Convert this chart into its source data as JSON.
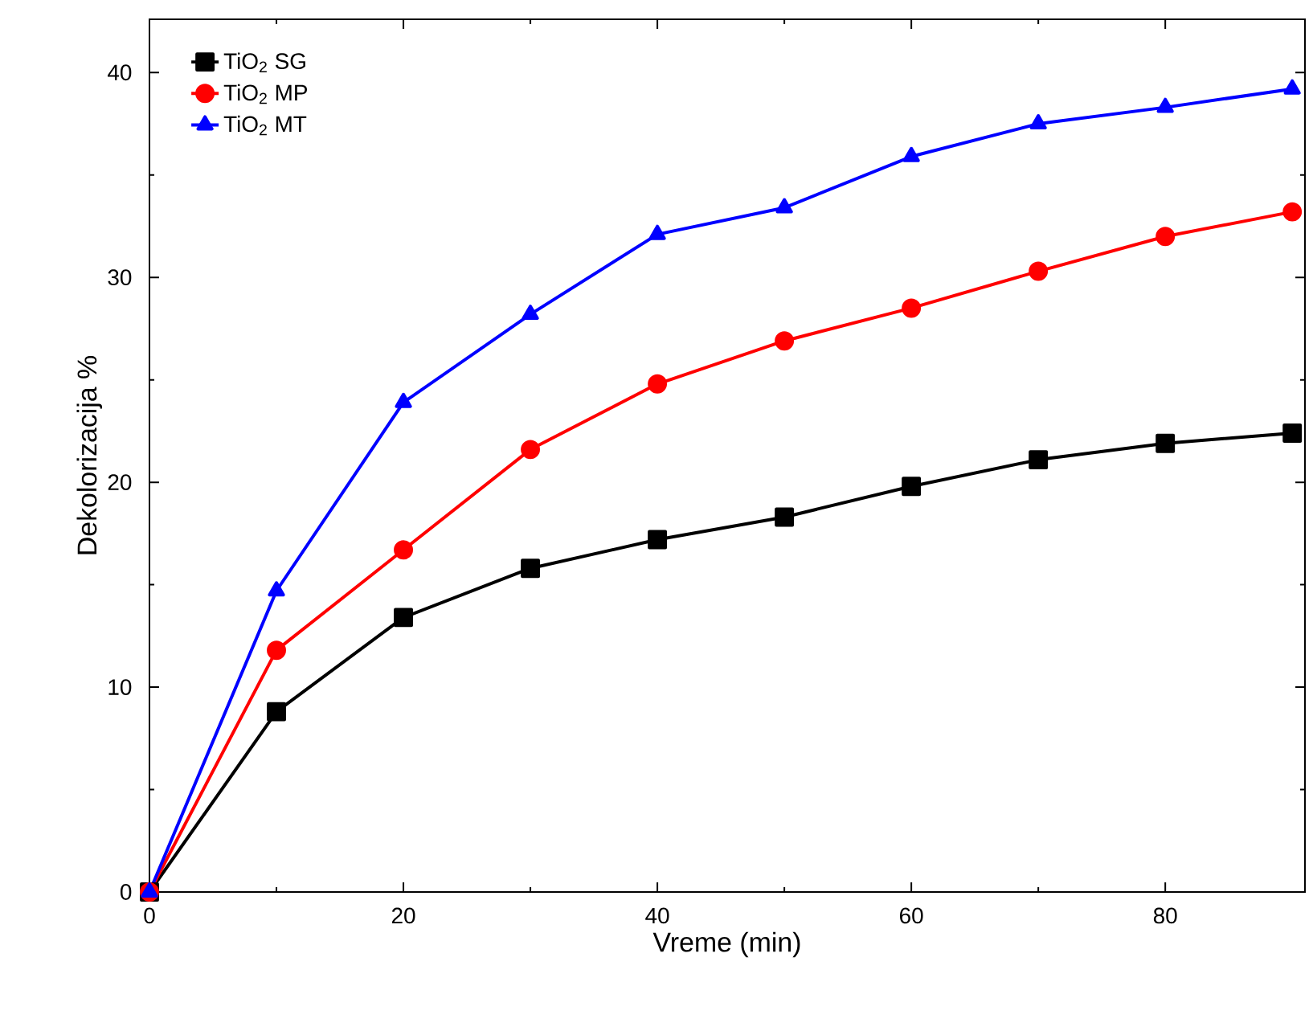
{
  "chart_data": {
    "type": "line",
    "xlabel": "Vreme (min)",
    "ylabel": "Dekolorizacija %",
    "x": [
      0,
      10,
      20,
      30,
      40,
      50,
      60,
      70,
      80,
      90
    ],
    "series": [
      {
        "name": "TiO$_{2}$ SG",
        "color": "#000000",
        "marker": "square",
        "values": [
          0,
          8.8,
          13.4,
          15.8,
          17.2,
          18.3,
          19.8,
          21.1,
          21.9,
          22.4
        ]
      },
      {
        "name": "TiO$_{2}$ MP",
        "color": "#ff0000",
        "marker": "circle",
        "values": [
          0,
          11.8,
          16.7,
          21.6,
          24.8,
          26.9,
          28.5,
          30.3,
          32.0,
          33.2
        ]
      },
      {
        "name": "TiO$_{2}$ MT",
        "color": "#0000ff",
        "marker": "triangle",
        "values": [
          0,
          14.7,
          23.9,
          28.2,
          32.1,
          33.4,
          35.9,
          37.5,
          38.3,
          39.2
        ]
      }
    ],
    "xlim": [
      0,
      91
    ],
    "ylim": [
      0,
      42.6
    ],
    "xticks": [
      0,
      20,
      40,
      60,
      80
    ],
    "yticks": [
      0,
      10,
      20,
      30,
      40
    ],
    "legend": "top left",
    "grid": false,
    "line_style": "solid"
  }
}
